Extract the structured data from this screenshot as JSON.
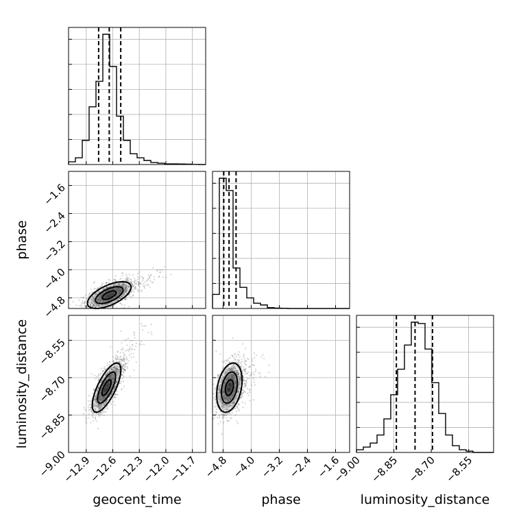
{
  "chart_data": {
    "type": "corner",
    "parameters": [
      "geocent_time",
      "phase",
      "luminosity_distance"
    ],
    "ranges": {
      "geocent_time": [
        -13.1,
        -11.55
      ],
      "phase": [
        -5.1,
        -1.2
      ],
      "luminosity_distance": [
        -9.0,
        -8.45
      ]
    },
    "ticks": {
      "geocent_time": [
        -12.9,
        -12.6,
        -12.3,
        -12.0,
        -11.7
      ],
      "phase": [
        -4.8,
        -4.0,
        -3.2,
        -2.4,
        -1.6
      ],
      "luminosity_distance": [
        -9.0,
        -8.85,
        -8.7,
        -8.55
      ]
    },
    "tick_labels": {
      "geocent_time": [
        "−12.9",
        "−12.6",
        "−12.3",
        "−12.0",
        "−11.7"
      ],
      "phase": [
        "−4.8",
        "−4.0",
        "−3.2",
        "−2.4",
        "−1.6"
      ],
      "luminosity_distance": [
        "−9.00",
        "−8.85",
        "−8.70",
        "−8.55"
      ]
    },
    "grid": true,
    "histograms": [
      {
        "parameter": "geocent_time",
        "bin_start": -13.1,
        "bin_width": 0.0775,
        "counts": [
          0.02,
          0.05,
          0.18,
          0.43,
          0.62,
          0.97,
          0.73,
          0.36,
          0.18,
          0.08,
          0.05,
          0.03,
          0.015,
          0.01,
          0.005,
          0.005,
          0.004,
          0.003,
          0.001,
          0.0
        ],
        "quantiles": [
          -12.76,
          -12.64,
          -12.51
        ]
      },
      {
        "parameter": "phase",
        "bin_start": -5.1,
        "bin_width": 0.195,
        "counts": [
          0.08,
          0.74,
          0.67,
          0.23,
          0.12,
          0.06,
          0.03,
          0.02,
          0.005,
          0.002,
          0.001,
          0,
          0,
          0,
          0,
          0,
          0,
          0,
          0,
          0
        ],
        "quantiles": [
          -4.78,
          -4.63,
          -4.43
        ]
      },
      {
        "parameter": "luminosity_distance",
        "bin_start": -9.0,
        "bin_width": 0.0275,
        "counts": [
          0.02,
          0.04,
          0.07,
          0.13,
          0.25,
          0.43,
          0.62,
          0.8,
          0.97,
          0.96,
          0.77,
          0.52,
          0.29,
          0.13,
          0.05,
          0.02,
          0.01,
          0,
          0,
          0
        ],
        "quantiles": [
          -8.84,
          -8.765,
          -8.695
        ]
      }
    ],
    "contours": [
      {
        "x": "geocent_time",
        "y": "phase",
        "center": [
          -12.64,
          -4.72
        ],
        "sigma": [
          0.13,
          0.2
        ],
        "rho": 0.6,
        "levels": [
          0.6,
          1.2,
          1.9
        ]
      },
      {
        "x": "geocent_time",
        "y": "luminosity_distance",
        "center": [
          -12.67,
          -8.74
        ],
        "sigma": [
          0.085,
          0.052
        ],
        "rho": 0.72,
        "levels": [
          0.6,
          1.2,
          1.9
        ]
      },
      {
        "x": "phase",
        "y": "luminosity_distance",
        "center": [
          -4.62,
          -8.74
        ],
        "sigma": [
          0.19,
          0.052
        ],
        "rho": 0.3,
        "levels": [
          0.6,
          1.2,
          1.9
        ]
      }
    ]
  }
}
